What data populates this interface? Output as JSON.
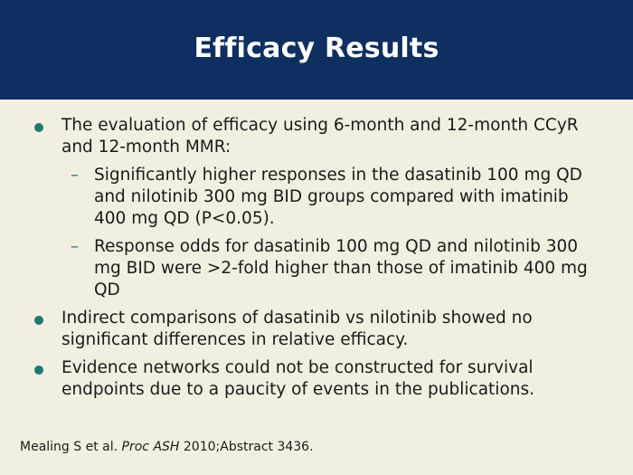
{
  "slide": {
    "title": "Efficacy Results",
    "bullets": [
      {
        "text": "The evaluation of efficacy using 6-month and 12-month CCyR and 12-month MMR:",
        "subs": [
          "Significantly higher responses in the dasatinib 100 mg QD and nilotinib 300 mg BID groups compared with imatinib 400 mg QD (P<0.05).",
          "Response odds for dasatinib 100 mg QD and nilotinib 300 mg BID were >2-fold higher than those of imatinib 400 mg QD"
        ]
      },
      {
        "text": "Indirect comparisons of dasatinib vs nilotinib showed no significant differences in relative efficacy."
      },
      {
        "text": "Evidence networks could not be constructed for survival endpoints due to a paucity of events in the publications."
      }
    ],
    "footer": {
      "authors": "Mealing S et al.",
      "journal": "Proc ASH",
      "details": "2010;Abstract 3436."
    }
  },
  "colors": {
    "header_bg": "#0e2f60",
    "body_bg": "#f3efe0",
    "bullet_accent": "#1c7a72",
    "title_text": "#ffffff"
  },
  "icons": {
    "bullet": "filled-circle",
    "sub_bullet": "en-dash"
  }
}
